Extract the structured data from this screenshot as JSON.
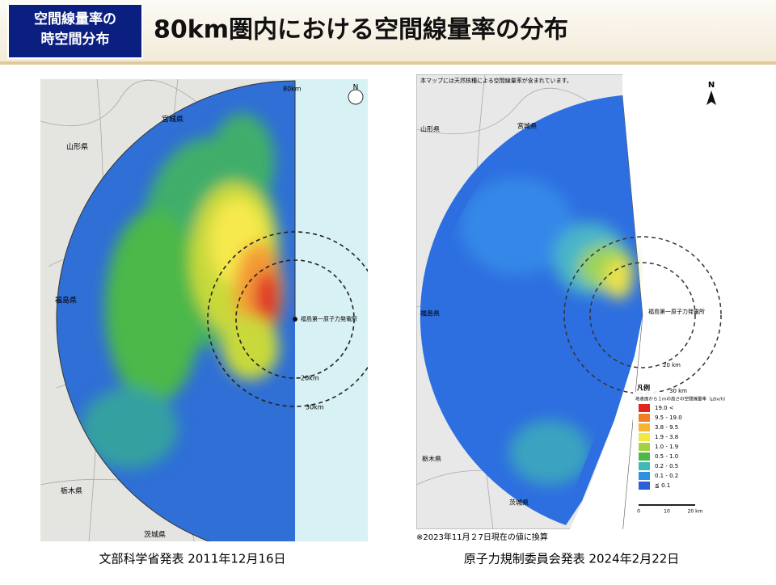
{
  "header": {
    "label_lines": [
      "空間線量率の",
      "時空間分布"
    ],
    "title": "80km圏内における空間線量率の分布"
  },
  "left_map": {
    "caption": "文部科学省発表 2011年12月16日",
    "labels": {
      "prefectures": [
        "宮城県",
        "山形県",
        "福島県",
        "栃木県",
        "茨城県"
      ],
      "radius_80": "80km",
      "radius_20": "20km",
      "radius_30": "30km",
      "plant": "福島第一原子力発電所",
      "north": "N"
    }
  },
  "right_map": {
    "caption": "原子力規制委員会発表 2024年2月22日",
    "note": "※2023年11月２7日現在の値に換算",
    "header_note": "本マップには天然核種による空間線量率が含まれています。",
    "labels": {
      "prefectures": [
        "宮城県",
        "山形県",
        "福島県",
        "栃木県",
        "茨城県"
      ],
      "radius_20": "20 km",
      "radius_30": "30 km",
      "plant": "福島第一原子力発電所",
      "north": "N"
    },
    "legend": {
      "title": "凡例",
      "subtitle": "地表面から１ｍの高さの空間線量率（μSv/h）",
      "items": [
        "19.0 <",
        "9.5 - 19.0",
        "3.8 - 9.5",
        "1.9 - 3.8",
        "1.0 - 1.9",
        "0.5 - 1.0",
        "0.2 - 0.5",
        "0.1 - 0.2",
        "≦ 0.1"
      ],
      "scale": [
        "0",
        "10",
        "20 km"
      ]
    }
  }
}
